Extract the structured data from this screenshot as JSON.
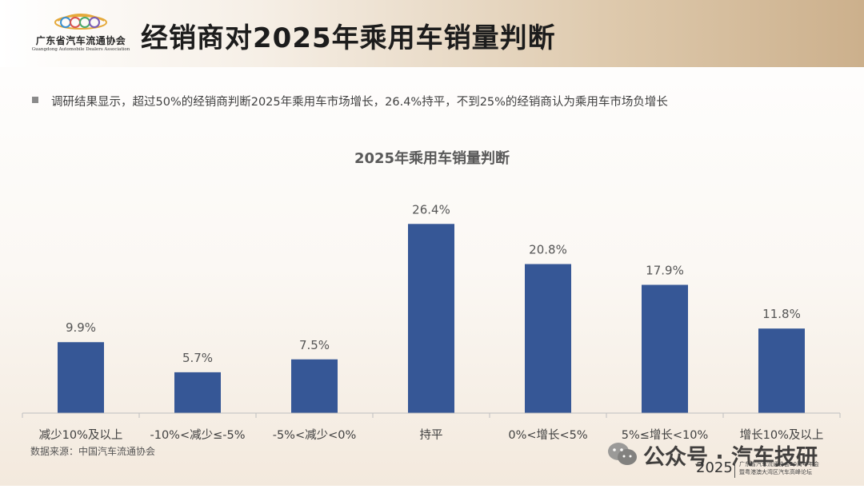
{
  "header": {
    "logo": {
      "name_cn": "广东省汽车流通协会",
      "name_en": "Guangdong Automobile Dealers Association",
      "icon": "gadda-logo"
    },
    "title": "经销商对2025年乘用车销量判断"
  },
  "bullet": {
    "text": "调研结果显示，超过50%的经销商判断2025年乘用车市场增长，26.4%持平，不到25%的经销商认为乘用车市场负增长"
  },
  "chart_data": {
    "type": "bar",
    "title": "2025年乘用车销量判断",
    "categories": [
      "减少10%及以上",
      "-10%<减少≤-5%",
      "-5%<减少<0%",
      "持平",
      "0%<增长<5%",
      "5%≤增长<10%",
      "增长10%及以上"
    ],
    "values": [
      9.9,
      5.7,
      7.5,
      26.4,
      20.8,
      17.9,
      11.8
    ],
    "value_labels": [
      "9.9%",
      "5.7%",
      "7.5%",
      "26.4%",
      "20.8%",
      "17.9%",
      "11.8%"
    ],
    "ylim": [
      0,
      30
    ],
    "grid": false,
    "legend": "none",
    "colors": {
      "bar": "#365796",
      "axis": "#bfbfbf",
      "label": "#555555",
      "title": "#595959"
    }
  },
  "source": {
    "text": "数据来源：中国汽车流通协会"
  },
  "watermark": {
    "icon": "wechat-icon",
    "text": "公众号 · 汽车技研"
  },
  "footer": {
    "year": "2025",
    "event_line1": "广东省汽车流通协会20周年年会",
    "event_line2": "暨粤港澳大湾区汽车高峰论坛"
  }
}
